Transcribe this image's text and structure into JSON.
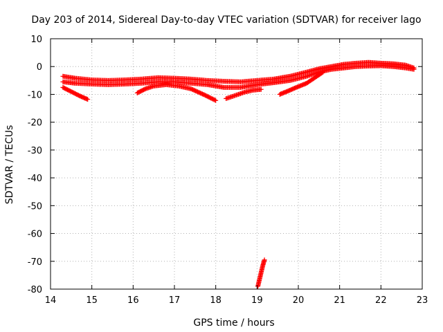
{
  "chart_data": {
    "type": "scatter",
    "title": "Day 203 of 2014, Sidereal Day-to-day VTEC variation (SDTVAR) for receiver lago",
    "xlabel": "GPS time / hours",
    "ylabel": "SDTVAR / TECUs",
    "xlim": [
      14,
      23
    ],
    "ylim": [
      -80,
      10
    ],
    "xticks": [
      "14",
      "15",
      "16",
      "17",
      "18",
      "19",
      "20",
      "21",
      "22",
      "23"
    ],
    "yticks": [
      "10",
      "0",
      "-10",
      "-20",
      "-30",
      "-40",
      "-50",
      "-60",
      "-70",
      "-80"
    ],
    "grid": true,
    "marker": "plus",
    "color": "#ff0000",
    "series": [
      {
        "name": "main band upper",
        "x": [
          14.3,
          14.6,
          15.0,
          15.4,
          15.8,
          16.2,
          16.6,
          17.0,
          17.4,
          17.8,
          18.2,
          18.6,
          19.0,
          19.4,
          19.8,
          20.2,
          20.5,
          20.8,
          21.1,
          21.4,
          21.7,
          22.0,
          22.3,
          22.6,
          22.8
        ],
        "y": [
          -3.5,
          -4.2,
          -4.8,
          -5.0,
          -4.8,
          -4.5,
          -4.0,
          -4.2,
          -4.5,
          -5.0,
          -5.3,
          -5.5,
          -5.0,
          -4.5,
          -3.5,
          -2.0,
          -0.8,
          0.0,
          0.8,
          1.2,
          1.5,
          1.2,
          1.0,
          0.5,
          -0.5
        ]
      },
      {
        "name": "main band lower",
        "x": [
          14.3,
          14.6,
          15.0,
          15.4,
          15.8,
          16.2,
          16.6,
          17.0,
          17.4,
          17.8,
          18.2,
          18.6,
          19.0,
          19.4,
          19.8,
          20.2,
          20.5,
          20.8,
          21.1,
          21.4,
          21.7,
          22.0,
          22.3,
          22.6,
          22.8
        ],
        "y": [
          -5.5,
          -6.0,
          -6.3,
          -6.5,
          -6.3,
          -6.0,
          -5.5,
          -5.5,
          -6.0,
          -6.5,
          -7.5,
          -7.5,
          -6.5,
          -5.8,
          -5.0,
          -3.5,
          -2.0,
          -1.0,
          -0.5,
          0.0,
          0.2,
          0.3,
          0.0,
          -0.5,
          -1.0
        ]
      },
      {
        "name": "descending arc 1",
        "x": [
          14.3,
          14.5,
          14.7,
          14.9
        ],
        "y": [
          -7.5,
          -9.0,
          -10.5,
          -11.8
        ]
      },
      {
        "name": "arc 2",
        "x": [
          16.1,
          16.3,
          16.5,
          16.8,
          17.1,
          17.4,
          17.7,
          18.0
        ],
        "y": [
          -9.5,
          -8.0,
          -7.0,
          -6.5,
          -7.0,
          -8.0,
          -10.0,
          -12.2
        ]
      },
      {
        "name": "arc 3",
        "x": [
          18.25,
          18.45,
          18.7,
          18.9,
          19.1
        ],
        "y": [
          -11.5,
          -10.5,
          -9.2,
          -8.5,
          -8.2
        ]
      },
      {
        "name": "arc 4",
        "x": [
          19.55,
          19.75,
          19.95,
          20.2,
          20.4,
          20.6
        ],
        "y": [
          -10.0,
          -8.8,
          -7.5,
          -6.0,
          -4.0,
          -2.0
        ]
      },
      {
        "name": "outlier streak",
        "x": [
          19.02,
          19.06,
          19.1,
          19.14,
          19.18
        ],
        "y": [
          -79.0,
          -76.5,
          -74.0,
          -71.5,
          -69.5
        ]
      }
    ]
  }
}
